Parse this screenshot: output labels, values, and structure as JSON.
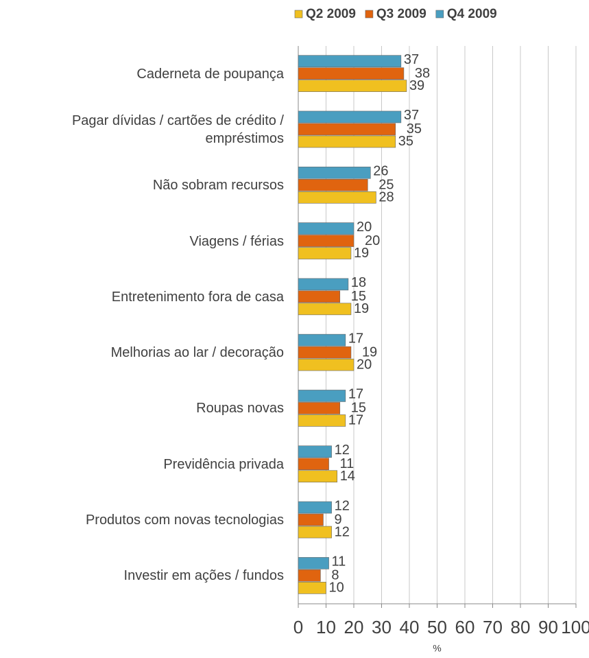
{
  "chart_data": {
    "type": "bar",
    "orientation": "horizontal",
    "categories": [
      "Caderneta de poupança",
      "Pagar dívidas / cartões de crédito / empréstimos",
      "Não sobram recursos",
      "Viagens / férias",
      "Entretenimento fora de casa",
      "Melhorias ao lar / decoração",
      "Roupas novas",
      "Previdência privada",
      "Produtos com novas tecnologias",
      "Investir em ações / fundos"
    ],
    "series": [
      {
        "name": "Q2 2009",
        "color": "#f0c020",
        "values": [
          39,
          35,
          28,
          19,
          19,
          20,
          17,
          14,
          12,
          10
        ]
      },
      {
        "name": "Q3 2009",
        "color": "#e0640f",
        "values": [
          38,
          35,
          25,
          20,
          15,
          19,
          15,
          11,
          9,
          8
        ]
      },
      {
        "name": "Q4 2009",
        "color": "#4a9ec0",
        "values": [
          37,
          37,
          26,
          20,
          18,
          17,
          17,
          12,
          12,
          11
        ]
      }
    ],
    "x_label": "%",
    "xlim": [
      0,
      100
    ],
    "xticks": [
      0,
      10,
      20,
      30,
      40,
      50,
      60,
      70,
      80,
      90,
      100
    ],
    "grid": true,
    "legend": "top"
  }
}
